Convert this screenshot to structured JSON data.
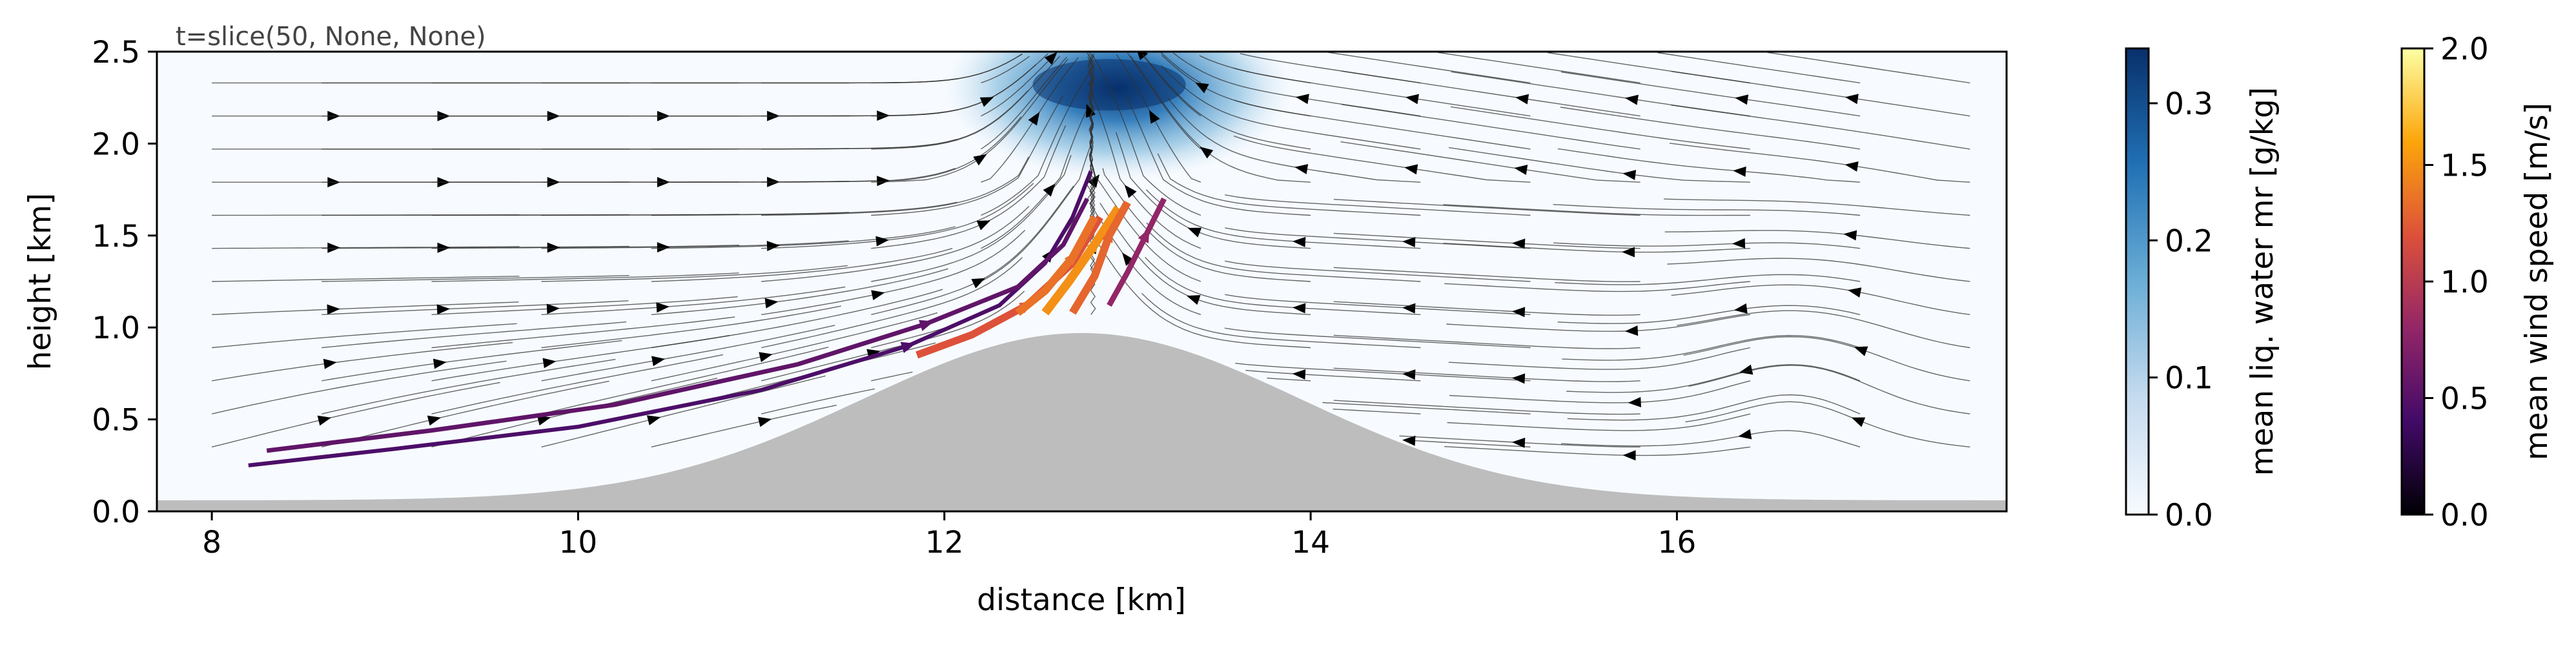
{
  "chart_data": {
    "type": "streamplot",
    "annotation": "t=slice(50, None, None)",
    "xlabel": "distance [km]",
    "ylabel": "height [km]",
    "xlim": [
      7.7,
      17.8
    ],
    "ylim": [
      0.0,
      2.5
    ],
    "x_ticks": [
      8,
      10,
      12,
      14,
      16
    ],
    "x_tick_labels": [
      "8",
      "10",
      "12",
      "14",
      "16"
    ],
    "y_ticks": [
      0.0,
      0.5,
      1.0,
      1.5,
      2.0,
      2.5
    ],
    "y_tick_labels": [
      "0.0",
      "0.5",
      "1.0",
      "1.5",
      "2.0",
      "2.5"
    ],
    "terrain": {
      "color": "#bdbdbd",
      "peak_x_km": 12.75,
      "peak_height_km": 0.97,
      "half_width_km": 1.6,
      "base_height_km": 0.06
    },
    "cloud": {
      "center_x_km": 12.95,
      "center_y_km": 2.3,
      "max_mr_g_per_kg": 0.33,
      "x_extent_km": [
        12.1,
        14.0
      ],
      "y_extent_km": [
        1.5,
        2.5
      ]
    },
    "colorbars": [
      {
        "name": "liquid water",
        "label": "mean liq. water mr [g/kg]",
        "range": [
          0.0,
          0.34
        ],
        "ticks": [
          0.0,
          0.1,
          0.2,
          0.3
        ],
        "tick_labels": [
          "0.0",
          "0.1",
          "0.2",
          "0.3"
        ],
        "colors": [
          "#f7fbff",
          "#c6dbef",
          "#6baed6",
          "#2171b5",
          "#08306b"
        ]
      },
      {
        "name": "wind speed",
        "label": "mean wind speed [m/s]",
        "range": [
          0.0,
          2.0
        ],
        "ticks": [
          0.0,
          0.5,
          1.0,
          1.5,
          2.0
        ],
        "tick_labels": [
          "0.0",
          "0.5",
          "1.0",
          "1.5",
          "2.0"
        ],
        "colors": [
          "#000004",
          "#420a68",
          "#932667",
          "#dd513a",
          "#fca50a",
          "#fcffa4"
        ]
      }
    ],
    "streamlines_upslope": [
      {
        "speed_mps": 0.45,
        "points": [
          [
            8.2,
            0.25
          ],
          [
            9.0,
            0.34
          ],
          [
            10.0,
            0.46
          ],
          [
            11.0,
            0.66
          ],
          [
            11.8,
            0.9
          ],
          [
            12.3,
            1.12
          ],
          [
            12.55,
            1.35
          ],
          [
            12.7,
            1.6
          ],
          [
            12.8,
            1.85
          ]
        ]
      },
      {
        "speed_mps": 0.55,
        "points": [
          [
            8.3,
            0.33
          ],
          [
            9.2,
            0.44
          ],
          [
            10.2,
            0.58
          ],
          [
            11.2,
            0.8
          ],
          [
            11.9,
            1.02
          ],
          [
            12.4,
            1.22
          ],
          [
            12.65,
            1.45
          ],
          [
            12.78,
            1.7
          ]
        ]
      },
      {
        "speed_mps": 1.2,
        "points": [
          [
            11.85,
            0.85
          ],
          [
            12.15,
            0.96
          ],
          [
            12.45,
            1.12
          ],
          [
            12.7,
            1.35
          ],
          [
            12.85,
            1.6
          ]
        ]
      },
      {
        "speed_mps": 1.35,
        "points": [
          [
            12.4,
            1.08
          ],
          [
            12.55,
            1.2
          ],
          [
            12.7,
            1.38
          ],
          [
            12.82,
            1.6
          ]
        ]
      },
      {
        "speed_mps": 1.5,
        "points": [
          [
            12.55,
            1.08
          ],
          [
            12.68,
            1.25
          ],
          [
            12.82,
            1.45
          ],
          [
            12.95,
            1.65
          ]
        ]
      },
      {
        "speed_mps": 1.3,
        "points": [
          [
            12.7,
            1.08
          ],
          [
            12.82,
            1.28
          ],
          [
            12.9,
            1.5
          ],
          [
            13.0,
            1.68
          ]
        ]
      },
      {
        "speed_mps": 0.8,
        "points": [
          [
            12.9,
            1.12
          ],
          [
            13.0,
            1.3
          ],
          [
            13.1,
            1.5
          ],
          [
            13.2,
            1.7
          ]
        ]
      }
    ]
  }
}
